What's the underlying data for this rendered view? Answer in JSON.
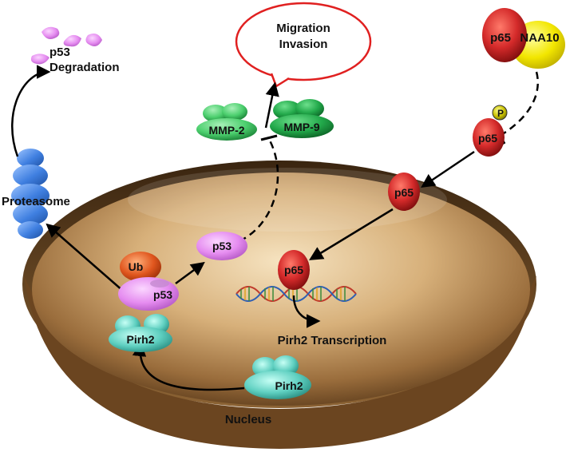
{
  "labels": {
    "p53_degradation_line1": "p53",
    "p53_degradation_line2": "Degradation",
    "proteasome": "Proteasome",
    "migration_line1": "Migration",
    "migration_line2": "Invasion",
    "mmp2": "MMP-2",
    "mmp9": "MMP-9",
    "p65_complex": "p65",
    "naa10": "NAA10",
    "phospho": "P",
    "p65_phospho": "p65",
    "p65_cytoplasm": "p65",
    "p65_nucleus": "p65",
    "ub": "Ub",
    "p53_complex": "p53",
    "p53_free": "p53",
    "pirh2_complex": "Pirh2",
    "pirh2_free": "Pirh2",
    "pirh2_transcription": "Pirh2 Transcription",
    "nucleus": "Nucleus"
  },
  "colors": {
    "p65_red": "#d42a2a",
    "naa10_yellow": "#f2e600",
    "mmp_green": "#33b85a",
    "p53_violet": "#e58cf0",
    "pirh2_teal": "#5ecfc0",
    "ub_orange": "#e0561e",
    "proteasome_blue": "#3f7fe0",
    "bubble_red": "#e02020",
    "nucleus_tan": "#b98a4e"
  }
}
